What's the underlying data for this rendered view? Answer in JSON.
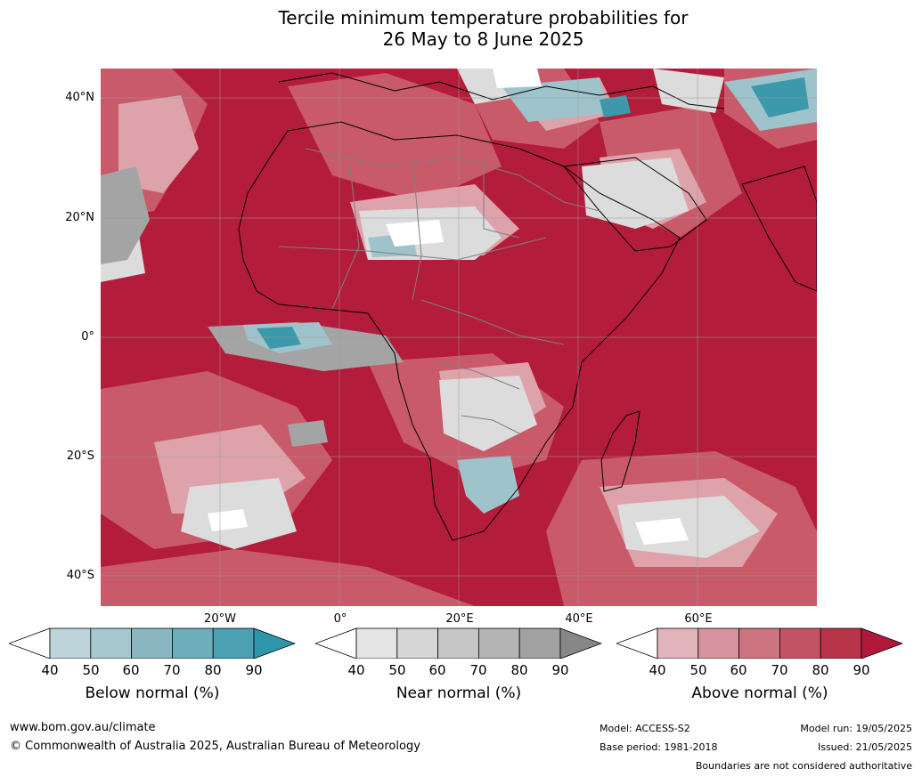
{
  "title_line1": "Tercile minimum temperature probabilities for",
  "title_line2": "26 May to 8 June 2025",
  "lat_labels": [
    "40°N",
    "20°N",
    "0°",
    "20°S",
    "40°S"
  ],
  "lon_labels": [
    "20°W",
    "0°",
    "20°E",
    "40°E",
    "60°E"
  ],
  "colorbars": [
    {
      "label": "Below normal (%)",
      "ticks": [
        "40",
        "50",
        "60",
        "70",
        "80",
        "90"
      ],
      "colors": [
        "#bdd4db",
        "#a7c8cf",
        "#8ab7c1",
        "#6daebb",
        "#4ba1b1"
      ],
      "low_color": "#ffffff",
      "high_color": "#2f95aa"
    },
    {
      "label": "Near normal (%)",
      "ticks": [
        "40",
        "50",
        "60",
        "70",
        "80",
        "90"
      ],
      "colors": [
        "#e4e4e4",
        "#d6d6d6",
        "#c6c6c6",
        "#b4b4b4",
        "#a2a2a2"
      ],
      "low_color": "#ffffff",
      "high_color": "#878787"
    },
    {
      "label": "Above normal (%)",
      "ticks": [
        "40",
        "50",
        "60",
        "70",
        "80",
        "90"
      ],
      "colors": [
        "#e1b4bb",
        "#d7939d",
        "#cd7481",
        "#c25465",
        "#b73449"
      ],
      "low_color": "#ffffff",
      "high_color": "#b1183a"
    }
  ],
  "footer": {
    "website": "www.bom.gov.au/climate",
    "copyright": "© Commonwealth of Australia 2025, Australian Bureau of Meteorology",
    "model": "Model: ACCESS-S2",
    "base_period": "Base period: 1981-2018",
    "model_run": "Model run: 19/05/2025",
    "issued": "Issued: 21/05/2025",
    "disclaimer": "Boundaries are not considered authoritative"
  },
  "map_colors": {
    "above_strong": "#b31c3a",
    "above_medium": "#c95a6a",
    "above_light": "#dea2ab",
    "near_light": "#dcdcdc",
    "near_dark": "#a4a4a4",
    "below_light": "#9fc3cb",
    "below_strong": "#3c98ab",
    "coastline": "#000000",
    "borders": "#808080",
    "grid": "#9a9a9a"
  }
}
